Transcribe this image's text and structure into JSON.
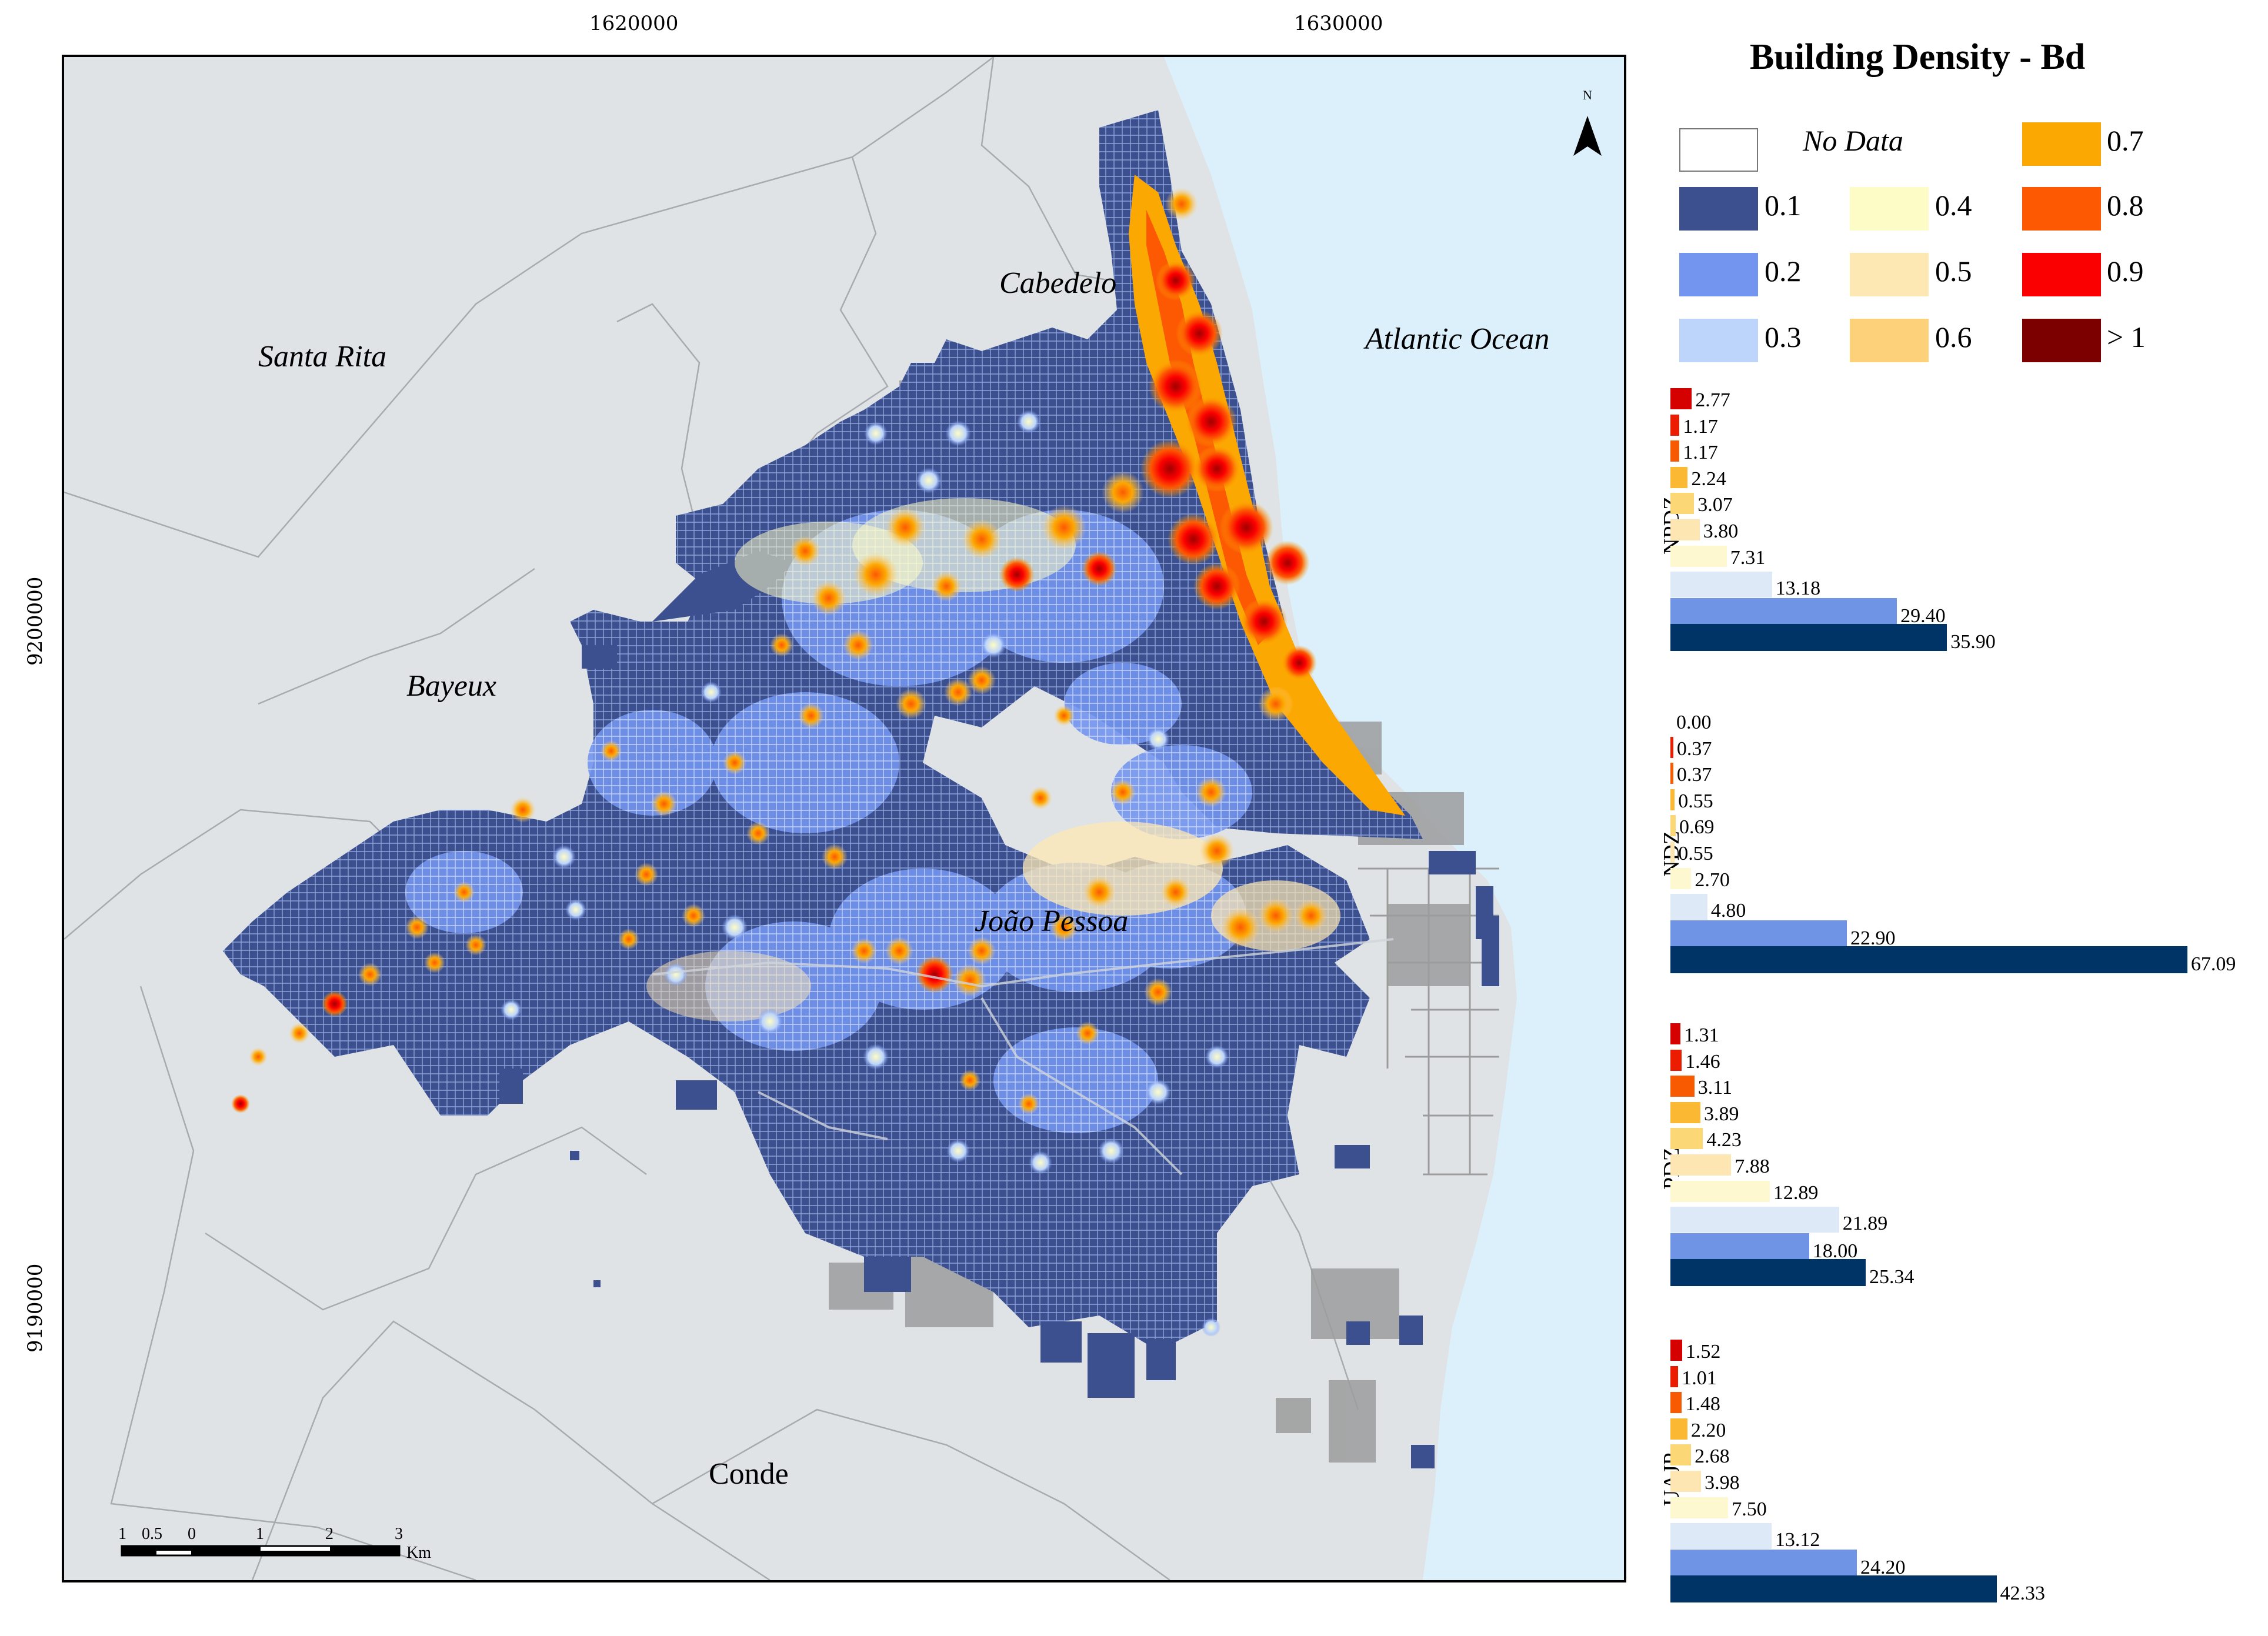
{
  "coords": {
    "x_top": [
      "1620000",
      "1630000"
    ],
    "y_left": [
      "9200000",
      "9190000"
    ]
  },
  "north_label": "N",
  "places": {
    "cabedelo": "Cabedelo",
    "santa_rita": "Santa Rita",
    "atlantic": "Atlantic Ocean",
    "bayeux": "Bayeux",
    "joao_pessoa": "João Pessoa",
    "conde": "Conde"
  },
  "scalebar": {
    "ticks": [
      "1",
      "0.5",
      "0",
      "1",
      "2",
      "3"
    ],
    "unit": "Km"
  },
  "legend": {
    "title": "Building Density - Bd",
    "no_data": "No Data",
    "classes": [
      {
        "label": "0.1",
        "color": "#3c4f8e"
      },
      {
        "label": "0.2",
        "color": "#7395f0"
      },
      {
        "label": "0.3",
        "color": "#bdd5fb"
      },
      {
        "label": "0.4",
        "color": "#fdfcc6"
      },
      {
        "label": "0.5",
        "color": "#fde8b4"
      },
      {
        "label": "0.6",
        "color": "#fdd07a"
      },
      {
        "label": "0.7",
        "color": "#fca802"
      },
      {
        "label": "0.8",
        "color": "#fc5902"
      },
      {
        "label": "0.9",
        "color": "#fb0000"
      },
      {
        "label": "> 1",
        "color": "#7d0000"
      }
    ]
  },
  "colors": {
    "ocean": "#dcf0fc",
    "land": "#dfe3e6",
    "no_data_gray": "#9c9c9c",
    "bar_colors": [
      "#d50000",
      "#ec1c00",
      "#f75a00",
      "#fbb832",
      "#fcd776",
      "#fde6b2",
      "#fdf8d0",
      "#dde9f7",
      "#6f94e6",
      "#003366"
    ]
  },
  "chart_data": [
    {
      "type": "bar",
      "zone": "NPDZ",
      "categories": [
        "> 1",
        "0.9",
        "0.8",
        "0.7",
        "0.6",
        "0.5",
        "0.4",
        "0.3",
        "0.2",
        "0.1"
      ],
      "values": [
        2.77,
        1.17,
        1.17,
        2.24,
        3.07,
        3.8,
        7.31,
        13.18,
        29.4,
        35.9
      ],
      "labels": [
        "2.77",
        "1.17",
        "1.17",
        "2.24",
        "3.07",
        "3.80",
        "7.31",
        "13.18",
        "29.40",
        "35.90"
      ]
    },
    {
      "type": "bar",
      "zone": "NDZ",
      "categories": [
        "> 1",
        "0.9",
        "0.8",
        "0.7",
        "0.6",
        "0.5",
        "0.4",
        "0.3",
        "0.2",
        "0.1"
      ],
      "values": [
        0.0,
        0.37,
        0.37,
        0.55,
        0.69,
        0.55,
        2.7,
        4.8,
        22.9,
        67.09
      ],
      "labels": [
        "0.00",
        "0.37",
        "0.37",
        "0.55",
        "0.69",
        "0.55",
        "2.70",
        "4.80",
        "22.90",
        "67.09"
      ]
    },
    {
      "type": "bar",
      "zone": "PDZ",
      "categories": [
        "> 1",
        "0.9",
        "0.8",
        "0.7",
        "0.6",
        "0.5",
        "0.4",
        "0.3",
        "0.2",
        "0.1"
      ],
      "values": [
        1.31,
        1.46,
        3.11,
        3.89,
        4.23,
        7.88,
        12.89,
        21.89,
        18.0,
        25.34
      ],
      "labels": [
        "1.31",
        "1.46",
        "3.11",
        "3.89",
        "4.23",
        "7.88",
        "12.89",
        "21.89",
        "18.00",
        "25.34"
      ]
    },
    {
      "type": "bar",
      "zone": "UAJP",
      "categories": [
        "> 1",
        "0.9",
        "0.8",
        "0.7",
        "0.6",
        "0.5",
        "0.4",
        "0.3",
        "0.2",
        "0.1"
      ],
      "values": [
        1.52,
        1.01,
        1.48,
        2.2,
        2.68,
        3.98,
        7.5,
        13.12,
        24.2,
        42.33
      ],
      "labels": [
        "1.52",
        "1.01",
        "1.48",
        "2.20",
        "2.68",
        "3.98",
        "7.50",
        "13.12",
        "24.20",
        "42.33"
      ]
    }
  ]
}
